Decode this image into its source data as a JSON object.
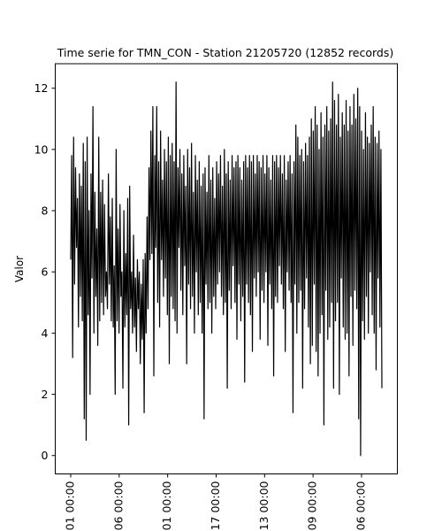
{
  "chart_data": {
    "type": "line",
    "title": "Time serie for TMN_CON - Station 21205720 (12852 records)",
    "ylabel": "Valor",
    "xlabel": "",
    "ylim": [
      -0.6,
      12.8
    ],
    "y_ticks": [
      0,
      2,
      4,
      6,
      8,
      10,
      12
    ],
    "x_tick_labels": [
      "01 00:00",
      "06 00:00",
      "01 00:00",
      "17 00:00",
      "13 00:00",
      "09 00:00",
      "06 00:00"
    ],
    "grid": false,
    "line_color": "#000000",
    "series": [
      {
        "values": [
          6.4,
          9.8,
          3.2,
          10.4,
          5.6,
          9.4,
          6.8,
          8.4,
          4.2,
          9.2,
          5.2,
          8.8,
          4.4,
          10.2,
          1.2,
          9.6,
          0.5,
          10.4,
          4.6,
          8.0,
          2.0,
          9.2,
          5.8,
          11.4,
          4.0,
          8.6,
          5.2,
          7.4,
          3.6,
          10.4,
          4.4,
          8.6,
          5.0,
          9.0,
          4.6,
          8.2,
          5.2,
          6.0,
          4.8,
          9.2,
          5.6,
          7.8,
          4.4,
          8.4,
          4.2,
          6.2,
          2.0,
          10.0,
          4.4,
          7.4,
          4.0,
          8.2,
          5.2,
          6.0,
          2.2,
          8.0,
          4.2,
          6.6,
          4.6,
          8.4,
          1.0,
          8.8,
          4.8,
          6.0,
          4.0,
          7.2,
          4.2,
          5.8,
          3.4,
          6.4,
          4.8,
          6.0,
          3.0,
          5.6,
          3.8,
          6.4,
          1.4,
          6.6,
          4.0,
          7.8,
          4.8,
          9.4,
          6.4,
          10.6,
          6.6,
          11.4,
          2.6,
          9.8,
          6.8,
          11.4,
          5.0,
          9.6,
          4.2,
          10.6,
          6.4,
          9.0,
          5.2,
          10.0,
          5.8,
          9.6,
          4.6,
          10.4,
          3.0,
          9.8,
          5.2,
          10.2,
          4.8,
          9.6,
          4.4,
          12.2,
          4.0,
          9.4,
          6.8,
          10.0,
          5.4,
          9.2,
          4.6,
          9.8,
          6.2,
          8.8,
          3.0,
          10.0,
          5.6,
          9.4,
          4.8,
          10.2,
          5.2,
          8.6,
          4.0,
          9.8,
          6.0,
          9.0,
          4.6,
          9.6,
          5.0,
          8.8,
          4.0,
          9.2,
          1.2,
          9.4,
          5.6,
          8.6,
          4.8,
          9.8,
          5.0,
          9.0,
          4.0,
          9.4,
          5.2,
          8.4,
          4.8,
          9.6,
          5.6,
          9.2,
          6.0,
          9.8,
          5.2,
          8.8,
          4.6,
          10.0,
          5.0,
          9.2,
          2.2,
          9.6,
          5.4,
          9.0,
          4.8,
          9.8,
          6.2,
          9.4,
          5.0,
          9.6,
          3.8,
          9.8,
          5.6,
          9.4,
          4.4,
          9.0,
          5.2,
          9.6,
          2.4,
          9.8,
          5.6,
          9.4,
          5.0,
          9.8,
          4.6,
          9.6,
          3.4,
          9.8,
          5.8,
          9.2,
          5.2,
          9.8,
          6.0,
          9.6,
          3.8,
          9.4,
          5.4,
          9.8,
          5.0,
          9.2,
          6.0,
          9.8,
          3.6,
          9.4,
          5.6,
          9.0,
          4.8,
          9.8,
          2.6,
          9.6,
          5.2,
          9.8,
          5.0,
          9.4,
          6.2,
          9.8,
          5.6,
          9.2,
          4.8,
          9.8,
          3.4,
          9.0,
          6.0,
          9.6,
          5.4,
          9.8,
          5.0,
          9.2,
          1.4,
          9.6,
          5.6,
          10.8,
          4.0,
          10.4,
          5.0,
          9.8,
          5.4,
          10.0,
          2.2,
          9.6,
          4.8,
          10.2,
          5.8,
          9.8,
          4.2,
          10.4,
          3.0,
          11.0,
          3.6,
          10.6,
          5.6,
          11.4,
          3.4,
          10.8,
          2.6,
          10.0,
          4.0,
          11.2,
          4.6,
          10.4,
          1.0,
          10.8,
          5.4,
          11.4,
          3.8,
          10.6,
          4.2,
          11.0,
          5.0,
          12.2,
          2.2,
          11.6,
          4.4,
          10.8,
          5.0,
          11.8,
          2.0,
          10.4,
          5.8,
          11.2,
          4.2,
          10.8,
          3.8,
          11.6,
          4.0,
          10.6,
          2.6,
          11.4,
          5.2,
          10.8,
          3.6,
          11.8,
          5.4,
          11.0,
          4.8,
          12.0,
          1.2,
          11.4,
          0.0,
          10.6,
          4.4,
          10.0,
          3.8,
          11.2,
          5.2,
          10.4,
          4.0,
          10.2,
          6.0,
          10.8,
          4.6,
          11.4,
          4.0,
          10.4,
          2.8,
          10.2,
          5.8,
          10.6,
          4.2,
          10.0,
          2.2
        ]
      }
    ]
  }
}
